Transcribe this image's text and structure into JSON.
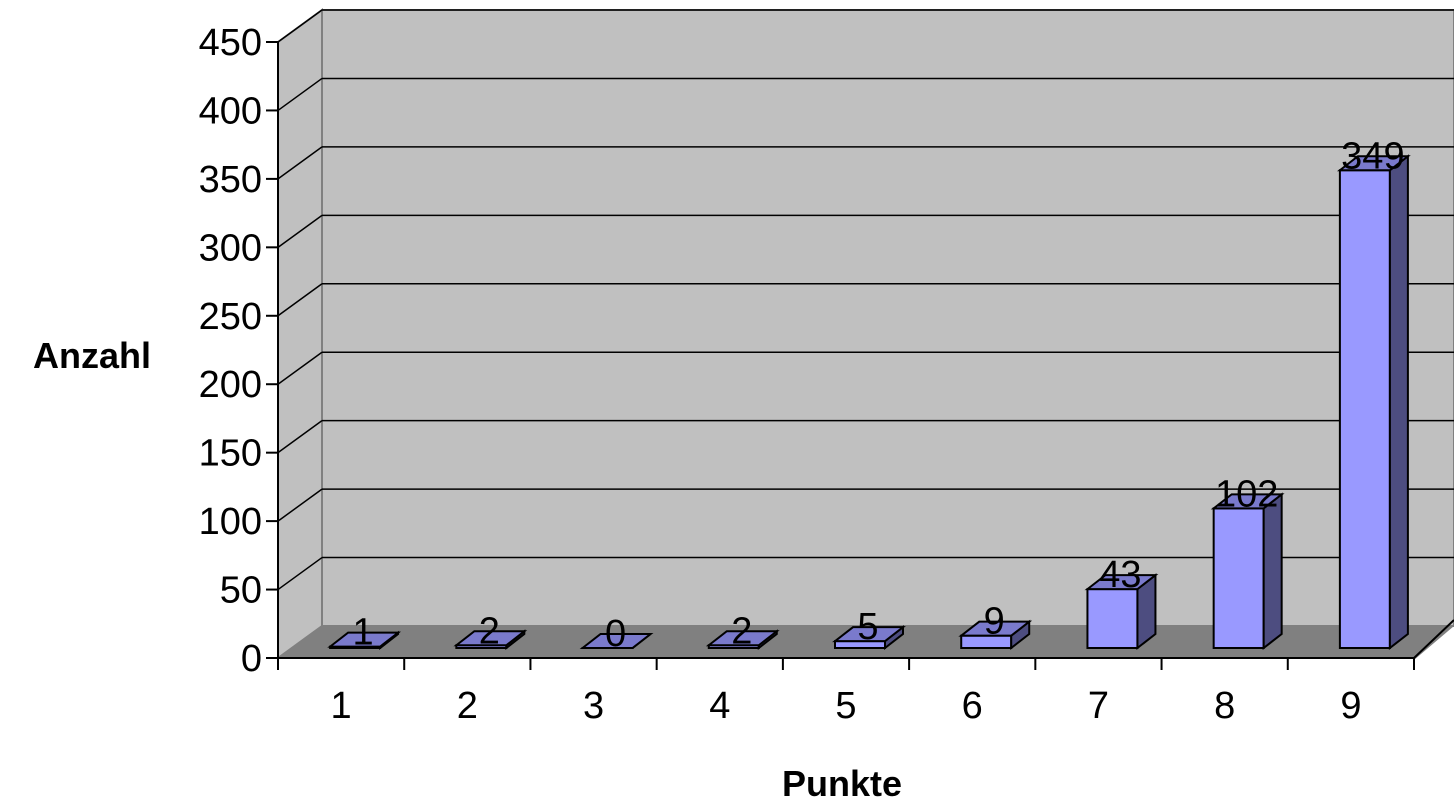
{
  "chart_data": {
    "type": "bar",
    "style": "3d-column",
    "categories": [
      "1",
      "2",
      "3",
      "4",
      "5",
      "6",
      "7",
      "8",
      "9"
    ],
    "values": [
      1,
      2,
      0,
      2,
      5,
      9,
      43,
      102,
      349
    ],
    "xlabel": "Punkte",
    "ylabel": "Anzahl",
    "ylim": [
      0,
      450
    ],
    "yticks": [
      0,
      50,
      100,
      150,
      200,
      250,
      300,
      350,
      400,
      450
    ],
    "grid": true,
    "legend": "none",
    "data_labels": true,
    "colors": {
      "bar_front": "#9999ff",
      "bar_side": "#4d4d80",
      "bar_top": "#7a7acc",
      "back_wall": "#c0c0c0",
      "side_wall": "#c0c0c0",
      "floor": "#808080",
      "gridline": "#000000"
    }
  }
}
